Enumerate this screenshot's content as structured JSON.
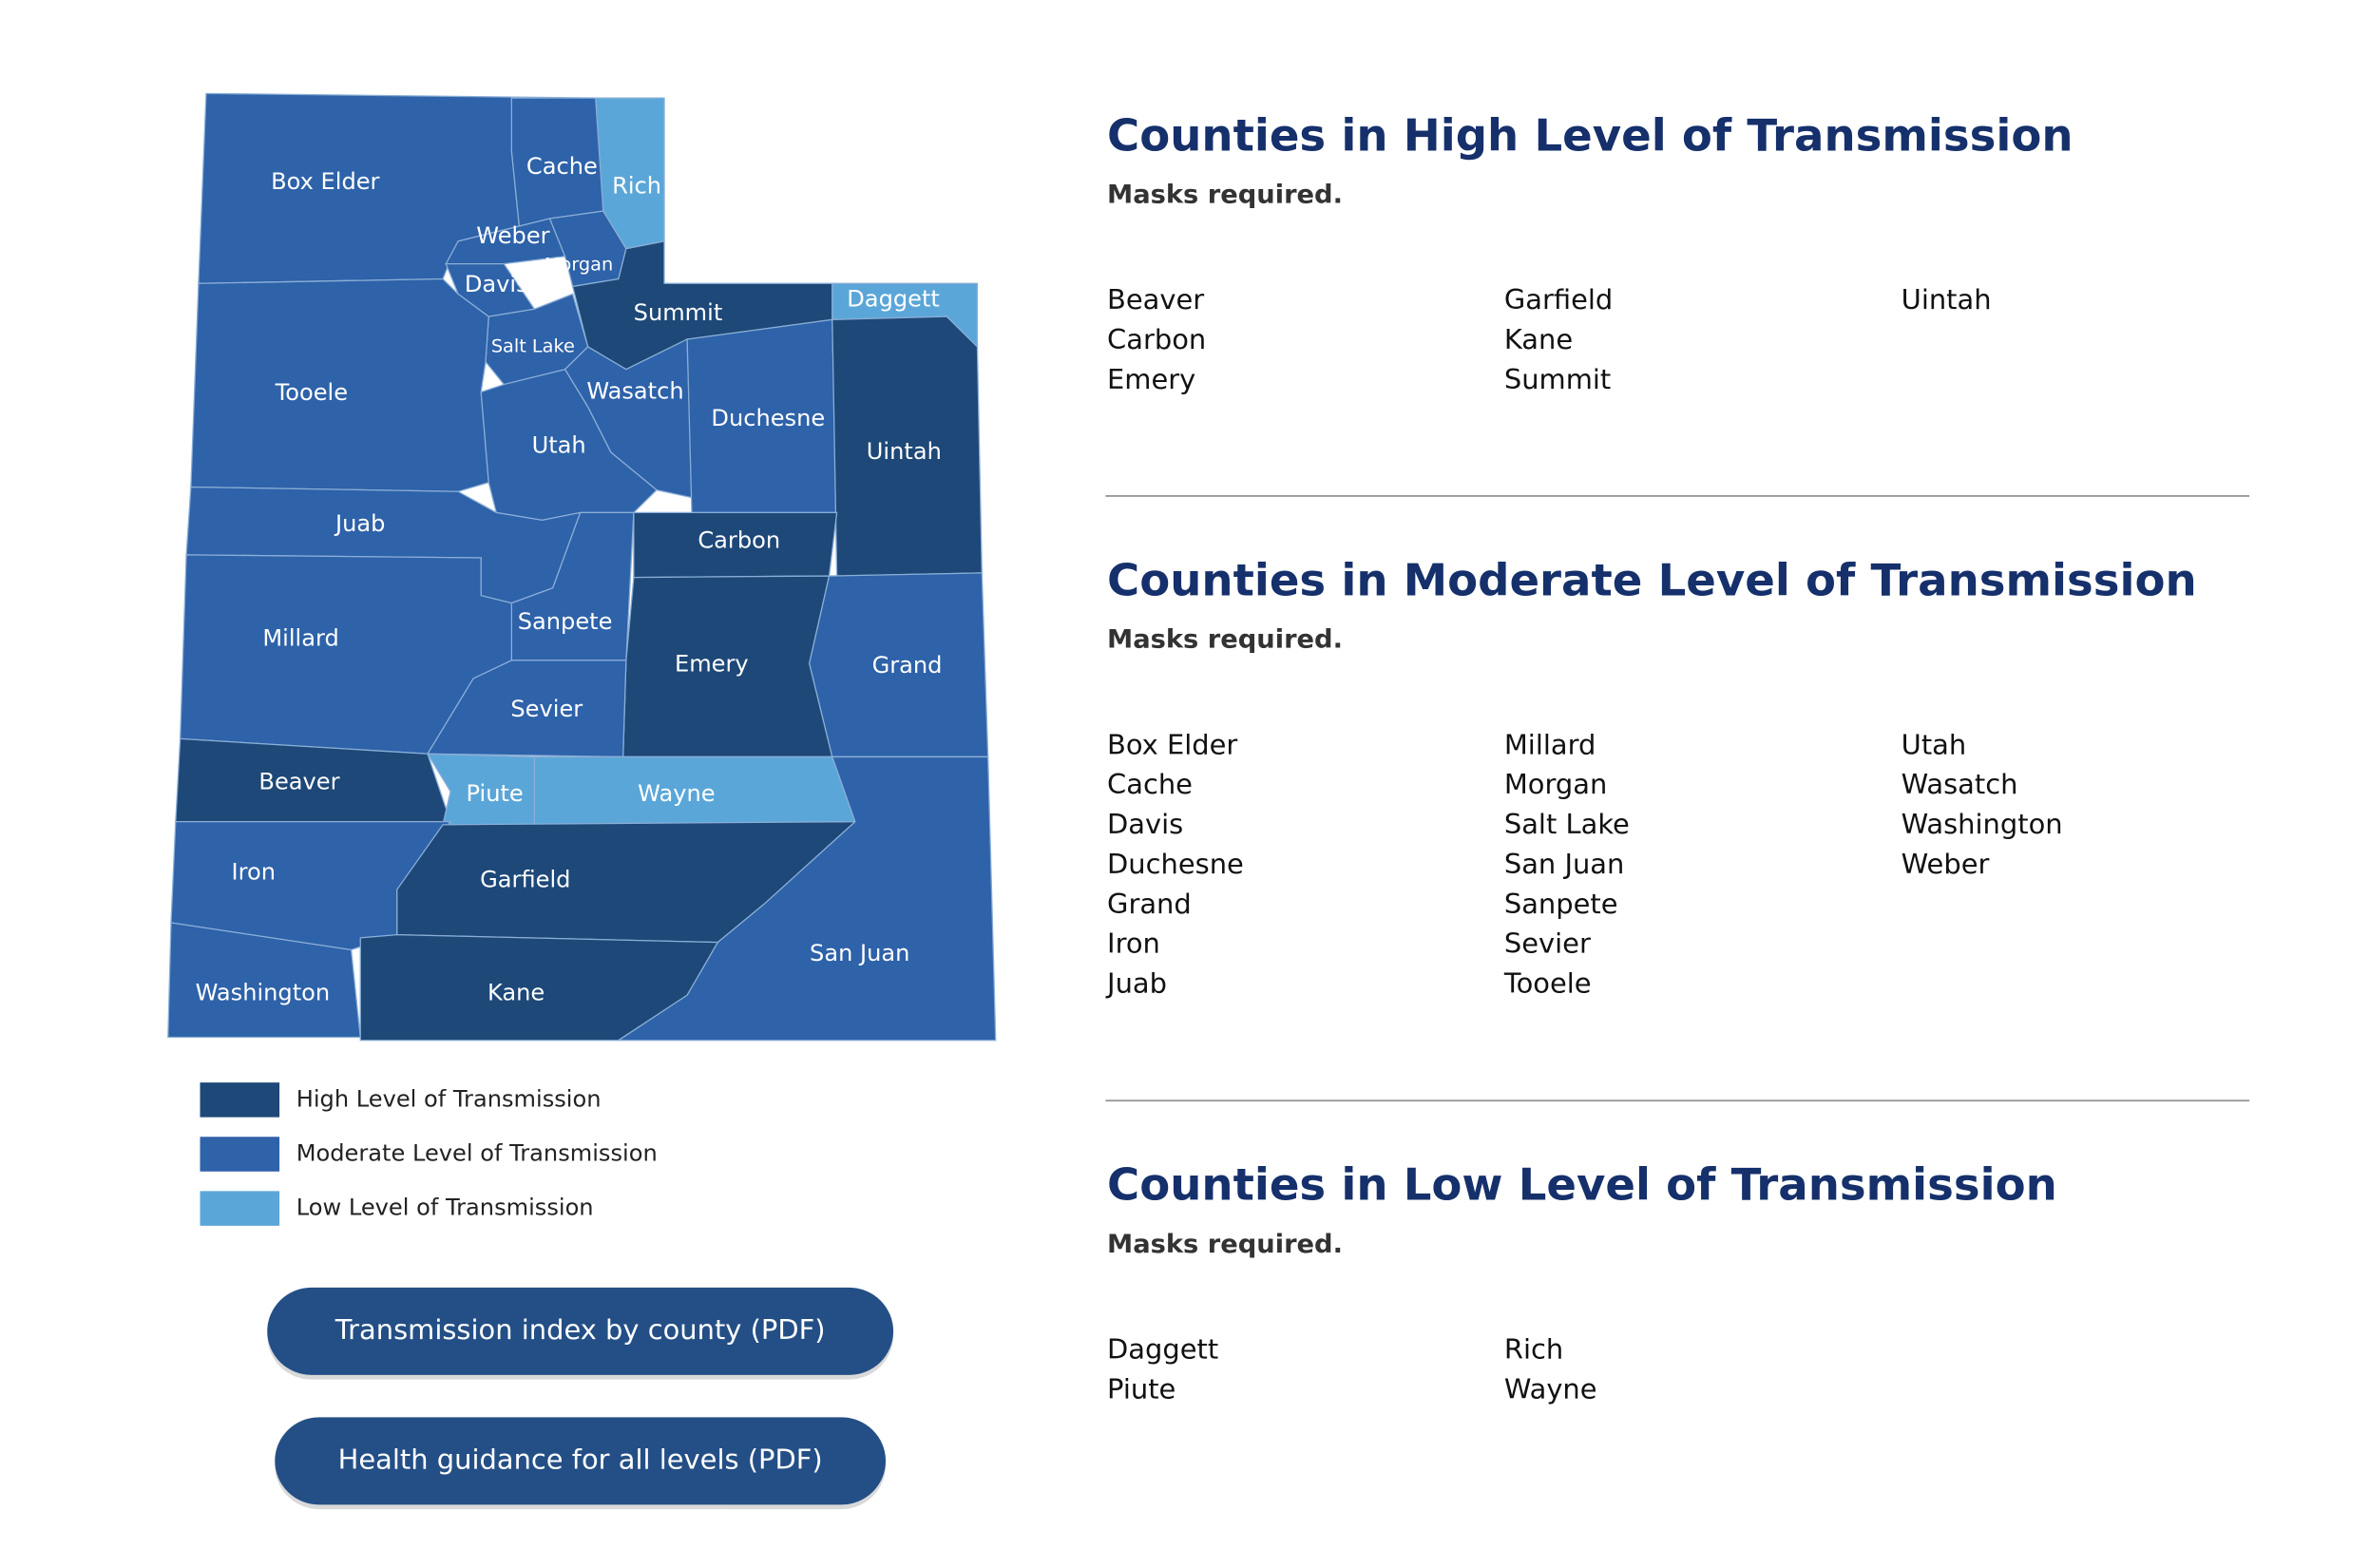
{
  "map": {
    "counties": [
      "Box Elder",
      "Cache",
      "Rich",
      "Weber",
      "Morgan",
      "Davis",
      "Summit",
      "Daggett",
      "Salt Lake",
      "Tooele",
      "Wasatch",
      "Utah",
      "Duchesne",
      "Uintah",
      "Juab",
      "Carbon",
      "Sanpete",
      "Millard",
      "Emery",
      "Grand",
      "Sevier",
      "Beaver",
      "Piute",
      "Wayne",
      "Iron",
      "Garfield",
      "San Juan",
      "Washington",
      "Kane"
    ]
  },
  "legend": [
    {
      "label": "High Level of Transmission",
      "color": "#1d4878"
    },
    {
      "label": "Moderate Level of Transmission",
      "color": "#2e62a9"
    },
    {
      "label": "Low Level of Transmission",
      "color": "#5ba6d8"
    }
  ],
  "buttons": [
    "Transmission index by county (PDF)",
    "Health guidance for all levels (PDF)"
  ],
  "sections": [
    {
      "title": "Counties in High Level of Transmission",
      "subtitle": "Masks required.",
      "columns": [
        [
          "Beaver",
          "Carbon",
          "Emery"
        ],
        [
          "Garfield",
          "Kane",
          "Summit"
        ],
        [
          "Uintah"
        ]
      ]
    },
    {
      "title": "Counties in Moderate Level of Transmission",
      "subtitle": "Masks required.",
      "columns": [
        [
          "Box Elder",
          "Cache",
          "Davis",
          "Duchesne",
          "Grand",
          "Iron",
          "Juab"
        ],
        [
          "Millard",
          "Morgan",
          "Salt Lake",
          "San Juan",
          "Sanpete",
          "Sevier",
          "Tooele"
        ],
        [
          "Utah",
          "Wasatch",
          "Washington",
          "Weber"
        ]
      ]
    },
    {
      "title": "Counties in Low Level of Transmission",
      "subtitle": "Masks required.",
      "columns": [
        [
          "Daggett",
          "Piute"
        ],
        [
          "Rich",
          "Wayne"
        ]
      ]
    }
  ]
}
